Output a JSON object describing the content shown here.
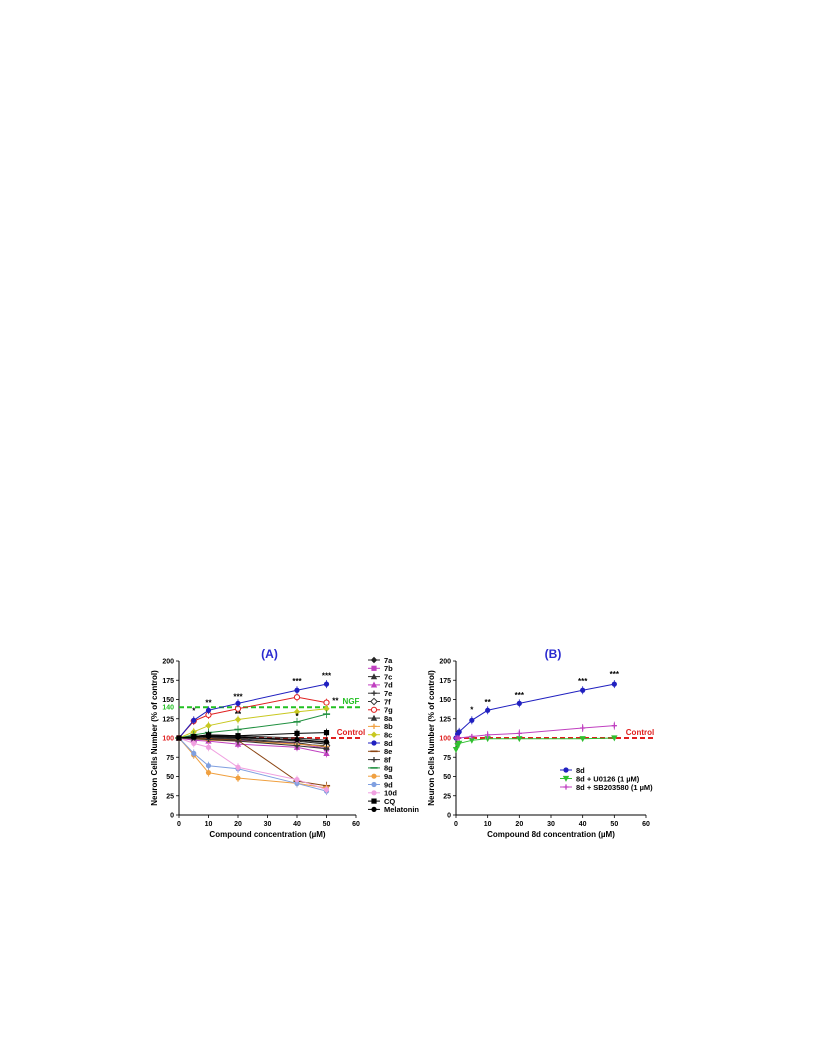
{
  "chart_data": [
    {
      "panel_label": "(A)",
      "type": "line",
      "xlabel": "Compound concentration (µM)",
      "ylabel": "Neuron Cells Number (% of control)",
      "xlim": [
        0,
        60
      ],
      "ylim": [
        0,
        200
      ],
      "xticks": [
        0,
        10,
        20,
        30,
        40,
        50,
        60
      ],
      "yticks": [
        0,
        25,
        50,
        75,
        100,
        125,
        150,
        175,
        200
      ],
      "x": [
        0,
        5,
        10,
        20,
        40,
        50
      ],
      "reference_lines": [
        {
          "label": "NGF",
          "tick_label": "140",
          "value": 140,
          "color": "#22c022"
        },
        {
          "label": "Control",
          "tick_label": "100",
          "value": 100,
          "color": "#e02020"
        }
      ],
      "significance": [
        {
          "x": 5,
          "y": 132,
          "text": "*"
        },
        {
          "x": 10,
          "y": 142,
          "text": "**"
        },
        {
          "x": 20,
          "y": 150,
          "text": "***"
        },
        {
          "x": 20,
          "y": 127,
          "text": "**"
        },
        {
          "x": 40,
          "y": 170,
          "text": "***"
        },
        {
          "x": 40,
          "y": 125,
          "text": "*"
        },
        {
          "x": 50,
          "y": 177,
          "text": "***"
        },
        {
          "x": 53,
          "y": 145,
          "text": "**"
        }
      ],
      "series": [
        {
          "name": "7a",
          "color": "#222222",
          "marker": "diamond",
          "values": [
            100,
            101,
            103,
            102,
            96,
            92
          ]
        },
        {
          "name": "7b",
          "color": "#c040c0",
          "marker": "square",
          "values": [
            100,
            98,
            99,
            97,
            93,
            86
          ]
        },
        {
          "name": "7c",
          "color": "#333333",
          "marker": "tri",
          "values": [
            100,
            99,
            100,
            99,
            94,
            88
          ]
        },
        {
          "name": "7d",
          "color": "#c040c0",
          "marker": "tri",
          "values": [
            100,
            97,
            96,
            92,
            88,
            80
          ]
        },
        {
          "name": "7e",
          "color": "#333333",
          "marker": "cross",
          "values": [
            100,
            101,
            101,
            100,
            97,
            94
          ]
        },
        {
          "name": "7f",
          "color": "#333333",
          "marker": "diamond-open",
          "values": [
            100,
            100,
            99,
            98,
            92,
            90
          ]
        },
        {
          "name": "7g",
          "color": "#e02020",
          "marker": "circle-open",
          "values": [
            100,
            122,
            130,
            138,
            153,
            146
          ]
        },
        {
          "name": "8a",
          "color": "#333333",
          "marker": "tri",
          "values": [
            100,
            102,
            104,
            103,
            100,
            97
          ]
        },
        {
          "name": "8b",
          "color": "#f0a040",
          "marker": "cross",
          "values": [
            100,
            99,
            97,
            96,
            92,
            89
          ]
        },
        {
          "name": "8c",
          "color": "#c8c820",
          "marker": "diamond",
          "values": [
            100,
            108,
            116,
            124,
            134,
            138
          ]
        },
        {
          "name": "8d",
          "color": "#2020c0",
          "marker": "circle",
          "values": [
            100,
            123,
            136,
            145,
            162,
            170
          ]
        },
        {
          "name": "8e",
          "color": "#8b4513",
          "marker": "dash",
          "values": [
            100,
            100,
            99,
            97,
            44,
            38
          ]
        },
        {
          "name": "8f",
          "color": "#333333",
          "marker": "cross",
          "values": [
            100,
            99,
            98,
            96,
            90,
            86
          ]
        },
        {
          "name": "8g",
          "color": "#209040",
          "marker": "dash",
          "values": [
            100,
            104,
            107,
            111,
            121,
            131
          ]
        },
        {
          "name": "9a",
          "color": "#f0a040",
          "marker": "circle",
          "values": [
            100,
            78,
            55,
            48,
            41,
            35
          ]
        },
        {
          "name": "9d",
          "color": "#80a0e0",
          "marker": "circle",
          "values": [
            100,
            80,
            64,
            60,
            41,
            31
          ]
        },
        {
          "name": "10d",
          "color": "#f0a0e0",
          "marker": "circle",
          "values": [
            100,
            93,
            88,
            62,
            46,
            33
          ]
        },
        {
          "name": "CQ",
          "color": "#000000",
          "marker": "square",
          "values": [
            100,
            102,
            104,
            103,
            106,
            107
          ]
        },
        {
          "name": "Melatonin",
          "color": "#000000",
          "marker": "circle",
          "values": [
            100,
            101,
            102,
            101,
            98,
            95
          ]
        }
      ]
    },
    {
      "panel_label": "(B)",
      "type": "line",
      "xlabel": "Compound 8d concentration (µM)",
      "ylabel": "Neuron Cells Number (% of control)",
      "xlim": [
        0,
        60
      ],
      "ylim": [
        0,
        200
      ],
      "xticks": [
        0,
        10,
        20,
        30,
        40,
        50,
        60
      ],
      "yticks": [
        0,
        25,
        50,
        75,
        100,
        125,
        150,
        175,
        200
      ],
      "x": [
        0,
        0.5,
        1,
        5,
        10,
        20,
        40,
        50
      ],
      "reference_lines": [
        {
          "label": "Control",
          "tick_label": "100",
          "value": 100,
          "color": "#e02020"
        }
      ],
      "significance": [
        {
          "x": 5,
          "y": 133,
          "text": "*"
        },
        {
          "x": 10,
          "y": 143,
          "text": "**"
        },
        {
          "x": 20,
          "y": 152,
          "text": "***"
        },
        {
          "x": 40,
          "y": 170,
          "text": "***"
        },
        {
          "x": 50,
          "y": 179,
          "text": "***"
        }
      ],
      "series": [
        {
          "name": "8d",
          "color": "#2020c0",
          "marker": "circle",
          "values": [
            100,
            105,
            108,
            123,
            136,
            145,
            162,
            170
          ]
        },
        {
          "name": "8d + U0126 (1 µM)",
          "color": "#30c030",
          "marker": "tri-down",
          "values": [
            85,
            90,
            93,
            97,
            99,
            99,
            99,
            100
          ]
        },
        {
          "name": "8d + SB203580 (1 µM)",
          "color": "#c040c0",
          "marker": "cross",
          "values": [
            100,
            100,
            100,
            102,
            104,
            106,
            113,
            116
          ]
        }
      ]
    }
  ]
}
